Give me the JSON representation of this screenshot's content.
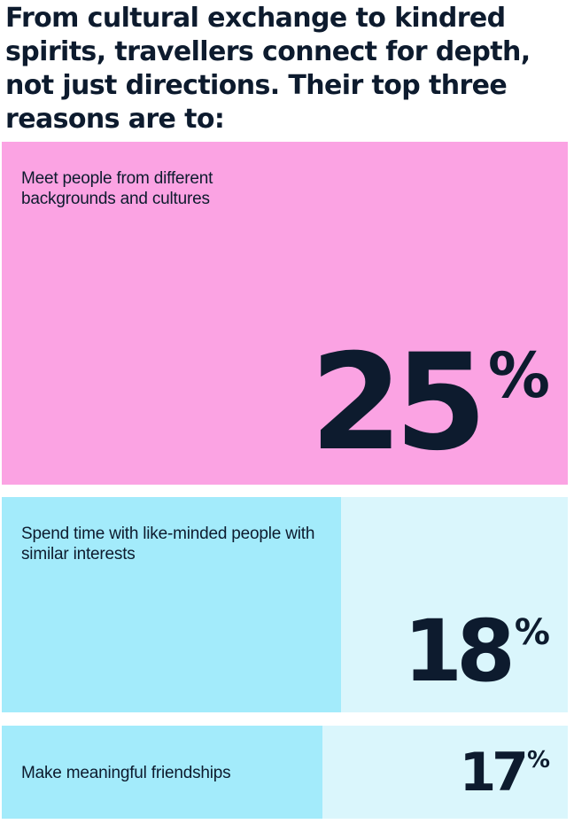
{
  "headline": "From cultural exchange to kindred spirits, travellers connect for depth, not just directions. Their top three reasons are to:",
  "colors": {
    "text": "#0d1b2e",
    "pink": "#fba3e3",
    "light_pink": "#fba3e3",
    "cyan": "#a3ebfb",
    "light_cyan": "#daf6fc"
  },
  "chart_data": {
    "type": "bar",
    "orientation": "horizontal",
    "title": "From cultural exchange to kindred spirits, travellers connect for depth, not just directions. Their top three reasons are to:",
    "unit": "%",
    "categories": [
      "Meet people from different backgrounds and cultures",
      "Spend time with like-minded people with similar interests",
      "Make meaningful friendships"
    ],
    "values": [
      25,
      18,
      17
    ],
    "value_labels": [
      "25",
      "18",
      "17"
    ],
    "percent_sign": "%",
    "bar_colors": [
      "#fba3e3",
      "#a3ebfb",
      "#a3ebfb"
    ],
    "track_colors": [
      "#fba3e3",
      "#daf6fc",
      "#daf6fc"
    ],
    "scale_max": 25
  }
}
